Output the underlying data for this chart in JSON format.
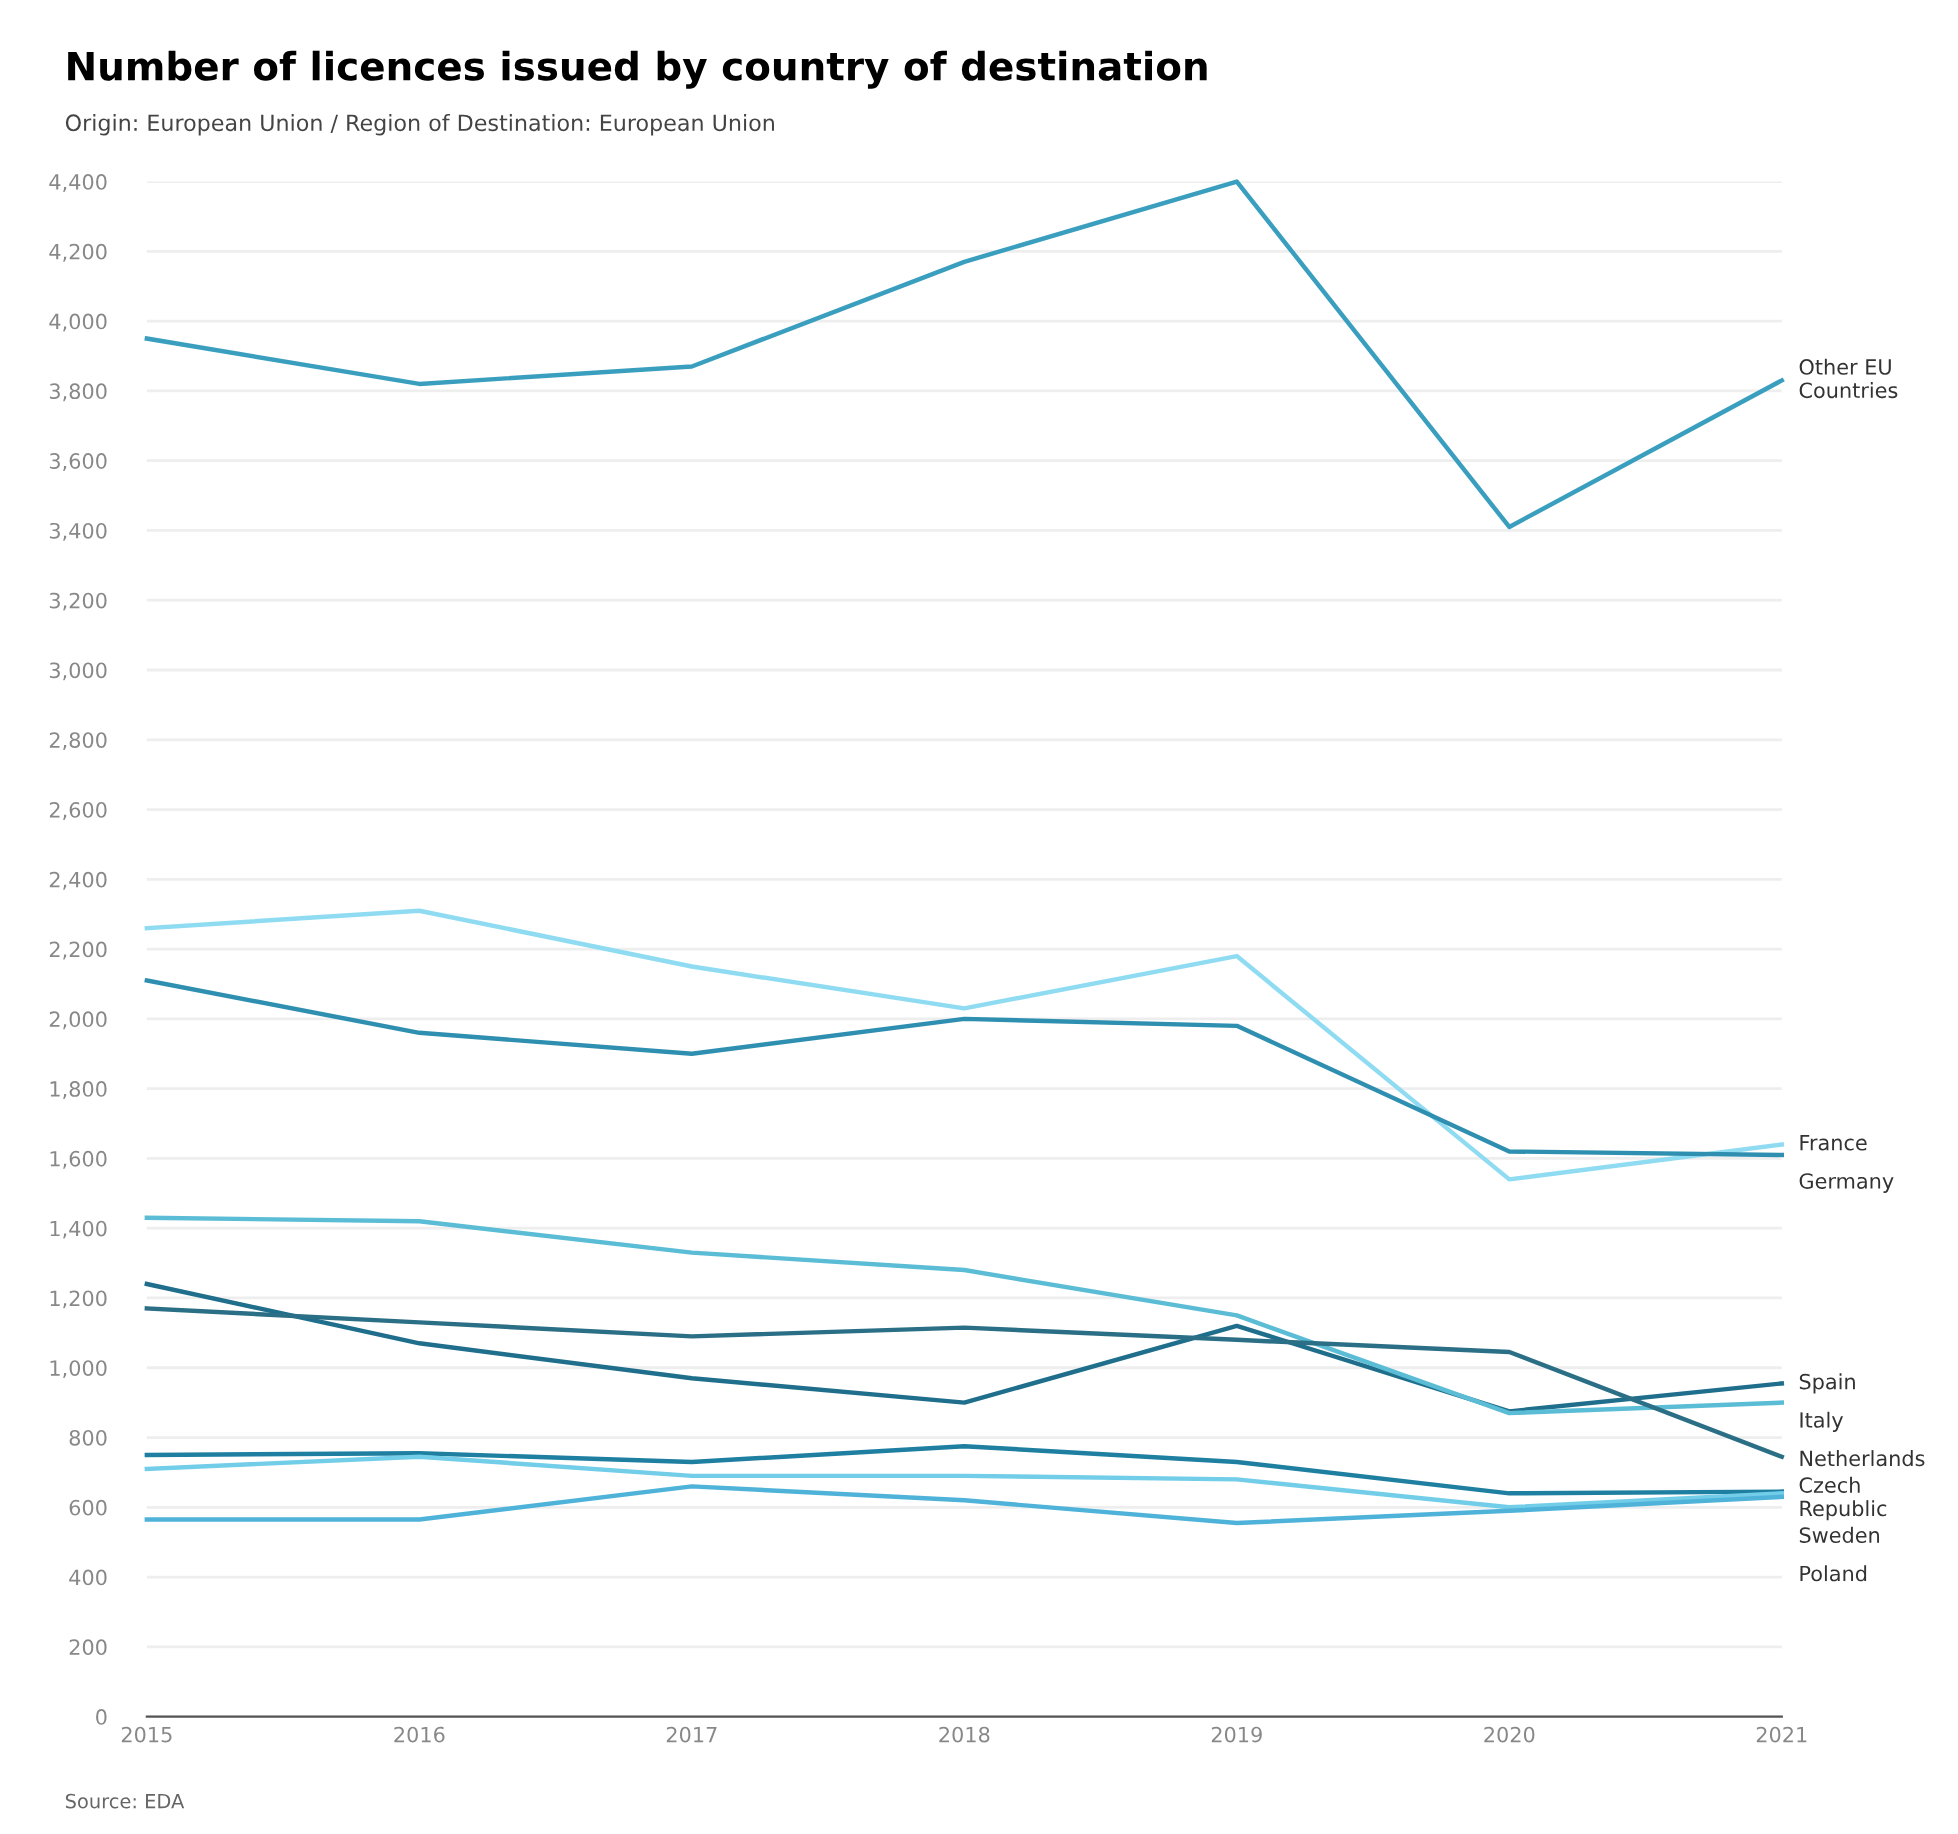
{
  "chart_data": {
    "type": "line",
    "title": "Number of licences issued by country of destination",
    "subtitle": "Origin: European Union / Region of Destination: European Union",
    "annotations": [
      "Source: EDA"
    ],
    "x": [
      2015,
      2016,
      2017,
      2018,
      2019,
      2020,
      2021
    ],
    "xlim": [
      2015,
      2021
    ],
    "xticks": [
      2015,
      2016,
      2017,
      2018,
      2019,
      2020,
      2021
    ],
    "ylim": [
      0,
      4400
    ],
    "yticks": [
      0,
      200,
      400,
      600,
      800,
      {
        "value": 1000,
        "label": "1,000"
      },
      {
        "value": 1200,
        "label": "1,200"
      },
      {
        "value": 1400,
        "label": "1,400"
      },
      {
        "value": 1600,
        "label": "1,600"
      },
      {
        "value": 1800,
        "label": "1,800"
      },
      {
        "value": 2000,
        "label": "2,000"
      },
      {
        "value": 2200,
        "label": "2,200"
      },
      {
        "value": 2400,
        "label": "2,400"
      },
      {
        "value": 2600,
        "label": "2,600"
      },
      {
        "value": 2800,
        "label": "2,800"
      },
      {
        "value": 3000,
        "label": "3,000"
      },
      {
        "value": 3200,
        "label": "3,200"
      },
      {
        "value": 3400,
        "label": "3,400"
      },
      {
        "value": 3600,
        "label": "3,600"
      },
      {
        "value": 3800,
        "label": "3,800"
      },
      {
        "value": 4000,
        "label": "4,000"
      },
      {
        "value": 4200,
        "label": "4,200"
      },
      {
        "value": 4400,
        "label": "4,400"
      }
    ],
    "grid": "y",
    "marker": "none",
    "line_style": "solid",
    "series": [
      {
        "name": "Other EU Countries",
        "color": "#3a9fbf",
        "values": [
          3950,
          3820,
          3870,
          4170,
          4400,
          3410,
          3830
        ]
      },
      {
        "name": "France",
        "color": "#8fdcf2",
        "values": [
          2260,
          2310,
          2150,
          2030,
          2180,
          1540,
          1640
        ]
      },
      {
        "name": "Germany",
        "color": "#2f8fb0",
        "values": [
          2110,
          1960,
          1900,
          2000,
          1980,
          1620,
          1610
        ]
      },
      {
        "name": "Spain",
        "color": "#1f6e8c",
        "values": [
          1240,
          1070,
          970,
          900,
          1120,
          875,
          955
        ]
      },
      {
        "name": "Italy",
        "color": "#5bbcd6",
        "values": [
          1430,
          1420,
          1330,
          1280,
          1150,
          870,
          900
        ]
      },
      {
        "name": "Netherlands",
        "color": "#2b6f86",
        "values": [
          1170,
          1130,
          1090,
          1115,
          1080,
          1045,
          745
        ]
      },
      {
        "name": "Czech Republic",
        "color": "#1e7fa0",
        "values": [
          750,
          755,
          730,
          775,
          730,
          640,
          645
        ]
      },
      {
        "name": "Sweden",
        "color": "#72cde8",
        "values": [
          710,
          745,
          690,
          690,
          680,
          600,
          640
        ]
      },
      {
        "name": "Poland",
        "color": "#4fb3d9",
        "values": [
          565,
          565,
          660,
          620,
          555,
          590,
          630
        ]
      }
    ]
  }
}
